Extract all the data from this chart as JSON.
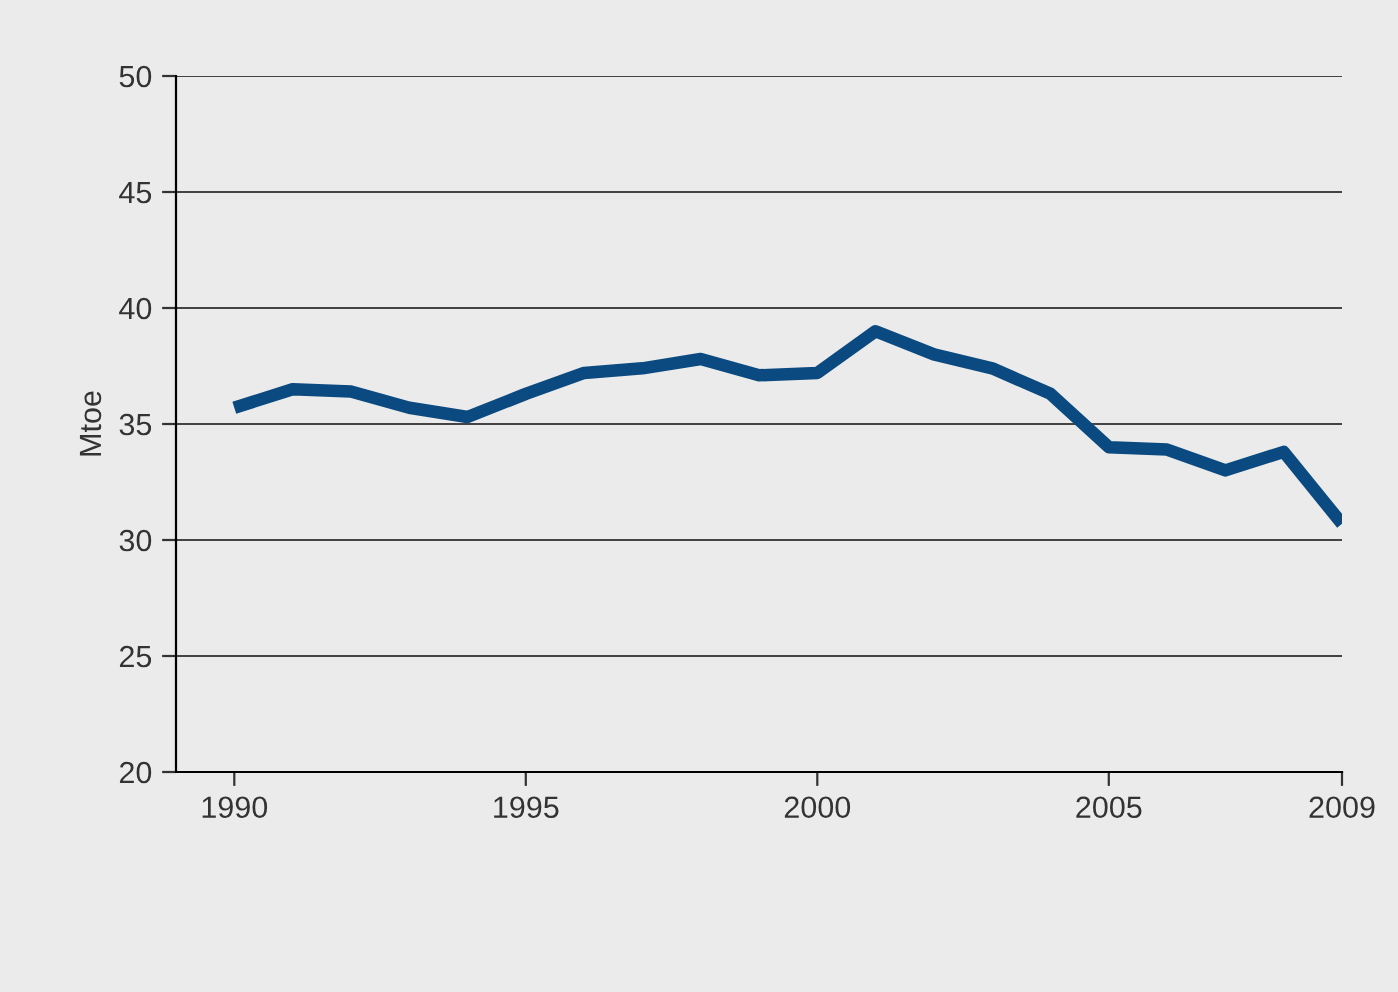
{
  "chart_data": {
    "type": "line",
    "ylabel": "Mtoe",
    "x": [
      1990,
      1991,
      1992,
      1993,
      1994,
      1995,
      1996,
      1997,
      1998,
      1999,
      2000,
      2001,
      2002,
      2003,
      2004,
      2005,
      2006,
      2007,
      2008,
      2009
    ],
    "series": [
      {
        "color": "#0b4a80",
        "values": [
          35.7,
          36.5,
          36.4,
          35.7,
          35.3,
          36.3,
          37.2,
          37.4,
          37.8,
          37.1,
          37.2,
          39.0,
          38.0,
          37.4,
          36.3,
          34.0,
          33.9,
          33.0,
          33.8,
          30.7
        ]
      }
    ],
    "xlim": [
      1989,
      2009
    ],
    "xticks": [
      1990,
      1995,
      2000,
      2005,
      2009
    ],
    "ylim": [
      20,
      50
    ],
    "yticks": [
      20,
      25,
      30,
      35,
      40,
      45,
      50
    ],
    "grid": "y",
    "marker": "none",
    "line_style": "solid",
    "legend": false
  }
}
